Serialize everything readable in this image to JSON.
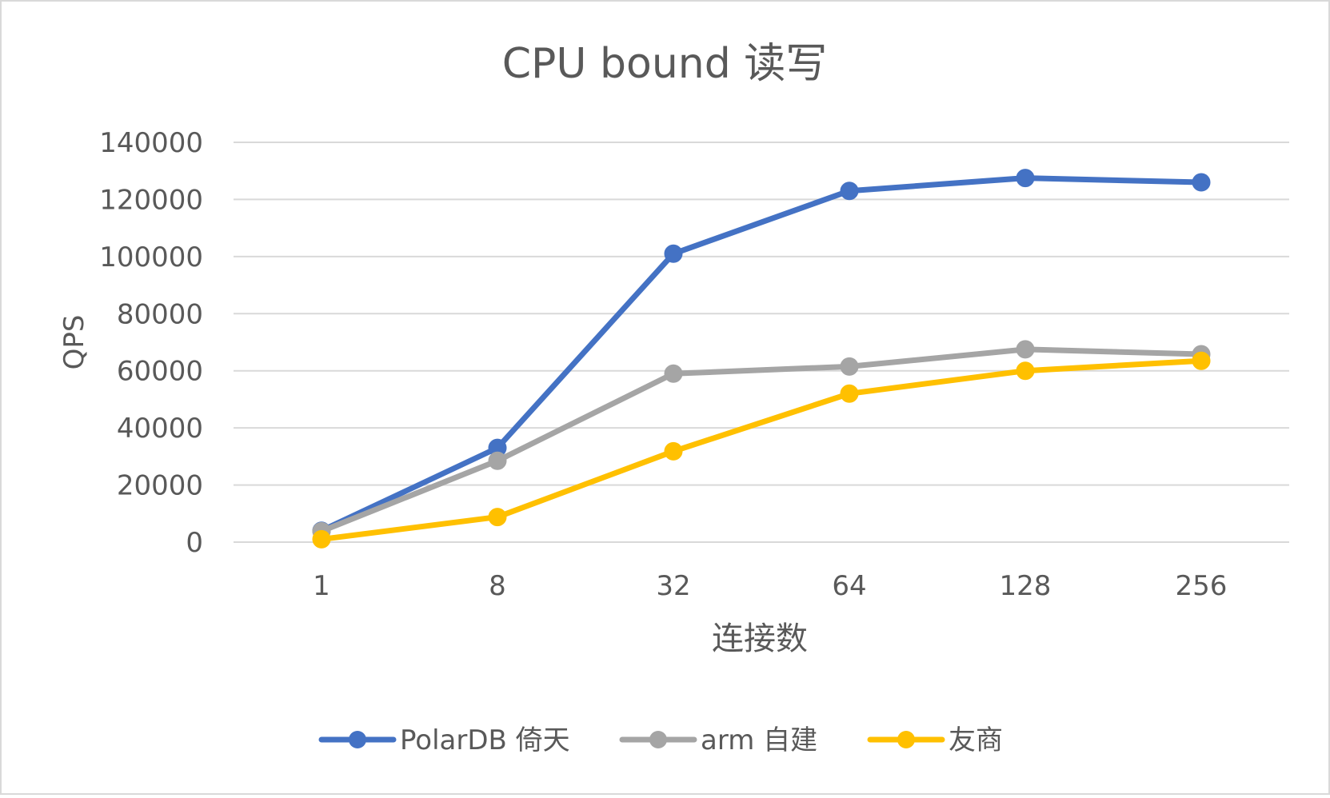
{
  "chart_data": {
    "type": "line",
    "title": "CPU bound 读写",
    "xlabel": "连接数",
    "ylabel": "QPS",
    "categories": [
      "1",
      "8",
      "32",
      "64",
      "128",
      "256"
    ],
    "ylim": [
      0,
      140000
    ],
    "yticks": [
      0,
      20000,
      40000,
      60000,
      80000,
      100000,
      120000,
      140000
    ],
    "ytick_labels": [
      "0",
      "20000",
      "40000",
      "60000",
      "80000",
      "100000",
      "120000",
      "140000"
    ],
    "grid": true,
    "legend": "bottom",
    "series": [
      {
        "name": "PolarDB 倚天",
        "color": "#4472C4",
        "values": [
          4000,
          33000,
          101000,
          123000,
          127500,
          126000
        ]
      },
      {
        "name": "arm 自建",
        "color": "#A5A5A5",
        "values": [
          3800,
          28500,
          59000,
          61500,
          67500,
          65800
        ]
      },
      {
        "name": "友商",
        "color": "#FFC000",
        "values": [
          1000,
          8800,
          31800,
          52000,
          60000,
          63500
        ]
      }
    ]
  }
}
